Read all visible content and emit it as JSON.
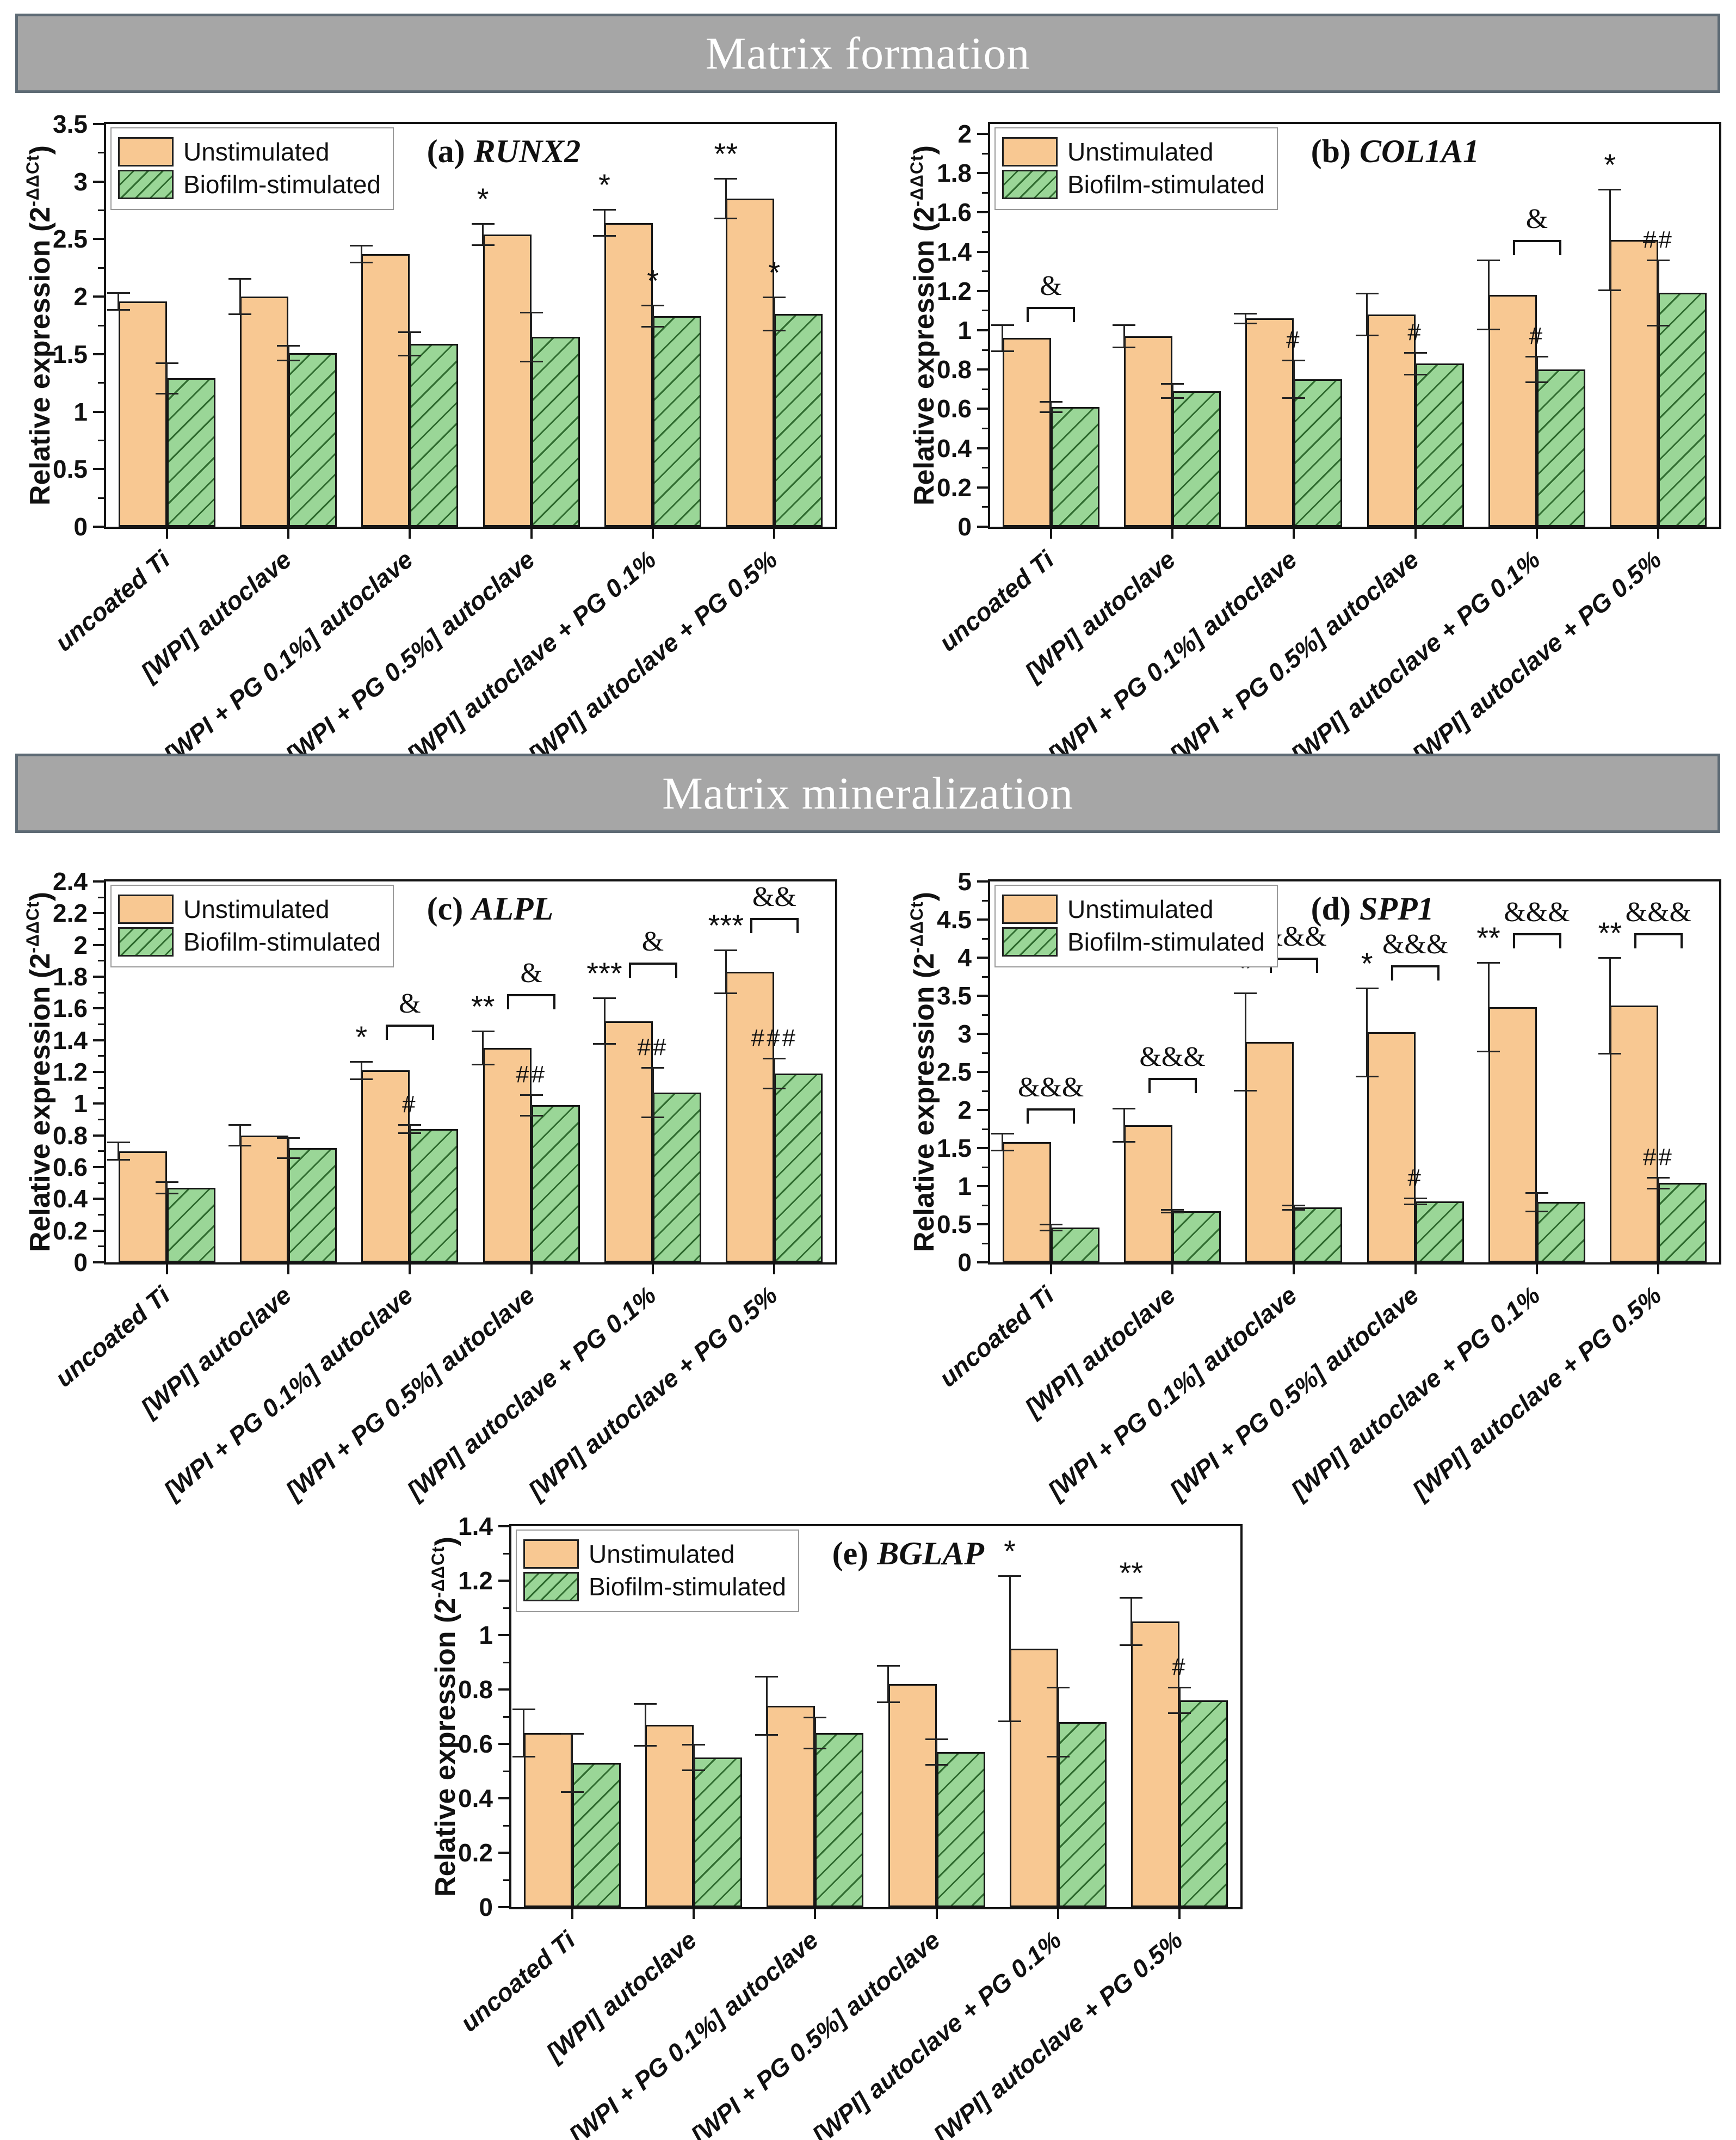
{
  "headers": [
    {
      "label": "Matrix formation"
    },
    {
      "label": "Matrix mineralization"
    }
  ],
  "legend": [
    "Unstimulated",
    "Biofilm-stimulated"
  ],
  "ylabel": {
    "pre": "Relative expression (2",
    "sup": "-ΔΔCt",
    "post": ")"
  },
  "colors": {
    "unstimulated_fill": "#F8C892",
    "stimulated_fill": "#9AD697",
    "hatch_line": "#2F6B2F",
    "bar_border": "#161616",
    "header_bg": "#A6A6A6",
    "header_border": "#5D6A74",
    "header_text": "#FFFFFF",
    "error_bar": "#222222"
  },
  "chart_data": [
    {
      "type": "bar",
      "panel_label": "(a)",
      "title": "RUNX2",
      "section": "Matrix formation",
      "ylim": [
        0,
        3.5
      ],
      "ytick_step": 0.5,
      "yticks": [
        "0",
        "0.5",
        "1",
        "1.5",
        "2",
        "2.5",
        "3",
        "3.5"
      ],
      "categories": [
        "uncoated Ti",
        "[WPI] autoclave",
        "[WPI + PG 0.1%] autoclave",
        "[WPI + PG 0.5%] autoclave",
        "[WPI] autoclave + PG 0.1%",
        "[WPI] autoclave + PG 0.5%"
      ],
      "series": [
        {
          "name": "Unstimulated",
          "values": [
            1.96,
            2.0,
            2.37,
            2.54,
            2.64,
            2.85
          ],
          "errors": [
            0.08,
            0.16,
            0.08,
            0.1,
            0.12,
            0.18
          ],
          "sig": [
            "",
            "",
            "",
            "*",
            "*",
            "**"
          ]
        },
        {
          "name": "Biofilm-stimulated",
          "values": [
            1.29,
            1.51,
            1.59,
            1.65,
            1.83,
            1.85
          ],
          "errors": [
            0.14,
            0.07,
            0.11,
            0.22,
            0.1,
            0.15
          ],
          "sig": [
            "",
            "",
            "",
            "",
            "*",
            "*"
          ]
        }
      ],
      "brackets": []
    },
    {
      "type": "bar",
      "panel_label": "(b)",
      "title": "COL1A1",
      "section": "Matrix formation",
      "ylim": [
        0,
        2.05
      ],
      "ytick_step": 0.2,
      "yticks": [
        "0",
        "0.2",
        "0.4",
        "0.6",
        "0.8",
        "1",
        "1.2",
        "1.4",
        "1.6",
        "1.8",
        "2"
      ],
      "categories": [
        "uncoated Ti",
        "[WPI] autoclave",
        "[WPI + PG 0.1%] autoclave",
        "[WPI + PG 0.5%] autoclave",
        "[WPI] autoclave + PG 0.1%",
        "[WPI] autoclave + PG 0.5%"
      ],
      "series": [
        {
          "name": "Unstimulated",
          "values": [
            0.96,
            0.97,
            1.06,
            1.08,
            1.18,
            1.46
          ],
          "errors": [
            0.07,
            0.06,
            0.03,
            0.11,
            0.18,
            0.26
          ],
          "sig": [
            "",
            "",
            "",
            "",
            "",
            "*"
          ]
        },
        {
          "name": "Biofilm-stimulated",
          "values": [
            0.61,
            0.69,
            0.75,
            0.83,
            0.8,
            1.19
          ],
          "errors": [
            0.03,
            0.04,
            0.1,
            0.06,
            0.07,
            0.17
          ],
          "sig": [
            "",
            "",
            "#",
            "#",
            "#",
            "##"
          ]
        }
      ],
      "brackets": [
        {
          "group": 0,
          "label": "&",
          "y": 1.12
        },
        {
          "group": 4,
          "label": "&",
          "y": 1.46
        }
      ]
    },
    {
      "type": "bar",
      "panel_label": "(c)",
      "title": "ALPL",
      "section": "Matrix mineralization",
      "ylim": [
        0,
        2.4
      ],
      "ytick_step": 0.2,
      "yticks": [
        "0",
        "0.2",
        "0.4",
        "0.6",
        "0.8",
        "1",
        "1.2",
        "1.4",
        "1.6",
        "1.8",
        "2",
        "2.2",
        "2.4"
      ],
      "categories": [
        "uncoated Ti",
        "[WPI] autoclave",
        "[WPI + PG 0.1%] autoclave",
        "[WPI + PG 0.5%] autoclave",
        "[WPI] autoclave + PG 0.1%",
        "[WPI] autoclave + PG 0.5%"
      ],
      "series": [
        {
          "name": "Unstimulated",
          "values": [
            0.7,
            0.8,
            1.21,
            1.35,
            1.52,
            1.83
          ],
          "errors": [
            0.06,
            0.07,
            0.06,
            0.11,
            0.15,
            0.14
          ],
          "sig": [
            "",
            "",
            "*",
            "**",
            "***",
            "***"
          ]
        },
        {
          "name": "Biofilm-stimulated",
          "values": [
            0.47,
            0.72,
            0.84,
            0.99,
            1.07,
            1.19
          ],
          "errors": [
            0.04,
            0.07,
            0.03,
            0.07,
            0.16,
            0.1
          ],
          "sig": [
            "",
            "",
            "#",
            "##",
            "##",
            "###"
          ]
        }
      ],
      "brackets": [
        {
          "group": 2,
          "label": "&",
          "y": 1.5
        },
        {
          "group": 3,
          "label": "&",
          "y": 1.69
        },
        {
          "group": 4,
          "label": "&",
          "y": 1.89
        },
        {
          "group": 5,
          "label": "&&",
          "y": 2.17
        }
      ]
    },
    {
      "type": "bar",
      "panel_label": "(d)",
      "title": "SPP1",
      "section": "Matrix mineralization",
      "ylim": [
        0,
        5
      ],
      "ytick_step": 0.5,
      "yticks": [
        "0",
        "0.5",
        "1",
        "1.5",
        "2",
        "2.5",
        "3",
        "3.5",
        "4",
        "4.5",
        "5"
      ],
      "categories": [
        "uncoated Ti",
        "[WPI] autoclave",
        "[WPI + PG 0.1%] autoclave",
        "[WPI + PG 0.5%] autoclave",
        "[WPI] autoclave + PG 0.1%",
        "[WPI] autoclave + PG 0.5%"
      ],
      "series": [
        {
          "name": "Unstimulated",
          "values": [
            1.58,
            1.8,
            2.89,
            3.02,
            3.35,
            3.37
          ],
          "errors": [
            0.12,
            0.23,
            0.65,
            0.59,
            0.59,
            0.64
          ],
          "sig": [
            "",
            "",
            "*",
            "*",
            "**",
            "**"
          ]
        },
        {
          "name": "Biofilm-stimulated",
          "values": [
            0.46,
            0.67,
            0.72,
            0.8,
            0.79,
            1.04
          ],
          "errors": [
            0.05,
            0.03,
            0.04,
            0.05,
            0.13,
            0.08
          ],
          "sig": [
            "",
            "",
            "",
            "#",
            "",
            "##"
          ]
        }
      ],
      "brackets": [
        {
          "group": 0,
          "label": "&&&",
          "y": 2.02
        },
        {
          "group": 1,
          "label": "&&&",
          "y": 2.42
        },
        {
          "group": 2,
          "label": "&&&",
          "y": 4.0
        },
        {
          "group": 3,
          "label": "&&&",
          "y": 3.9
        },
        {
          "group": 4,
          "label": "&&&",
          "y": 4.32
        },
        {
          "group": 5,
          "label": "&&&",
          "y": 4.32
        }
      ]
    },
    {
      "type": "bar",
      "panel_label": "(e)",
      "title": "BGLAP",
      "section": "Matrix mineralization",
      "ylim": [
        0,
        1.4
      ],
      "ytick_step": 0.2,
      "yticks": [
        "0",
        "0.2",
        "0.4",
        "0.6",
        "0.8",
        "1",
        "1.2",
        "1.4"
      ],
      "categories": [
        "uncoated Ti",
        "[WPI] autoclave",
        "[WPI + PG 0.1%] autoclave",
        "[WPI + PG 0.5%] autoclave",
        "[WPI] autoclave + PG 0.1%",
        "[WPI] autoclave + PG 0.5%"
      ],
      "series": [
        {
          "name": "Unstimulated",
          "values": [
            0.64,
            0.67,
            0.74,
            0.82,
            0.95,
            1.05
          ],
          "errors": [
            0.09,
            0.08,
            0.11,
            0.07,
            0.27,
            0.09
          ],
          "sig": [
            "",
            "",
            "",
            "",
            "*",
            "**"
          ]
        },
        {
          "name": "Biofilm-stimulated",
          "values": [
            0.53,
            0.55,
            0.64,
            0.57,
            0.68,
            0.76
          ],
          "errors": [
            0.11,
            0.05,
            0.06,
            0.05,
            0.13,
            0.05
          ],
          "sig": [
            "",
            "",
            "",
            "",
            "",
            "#"
          ]
        }
      ],
      "brackets": []
    }
  ]
}
